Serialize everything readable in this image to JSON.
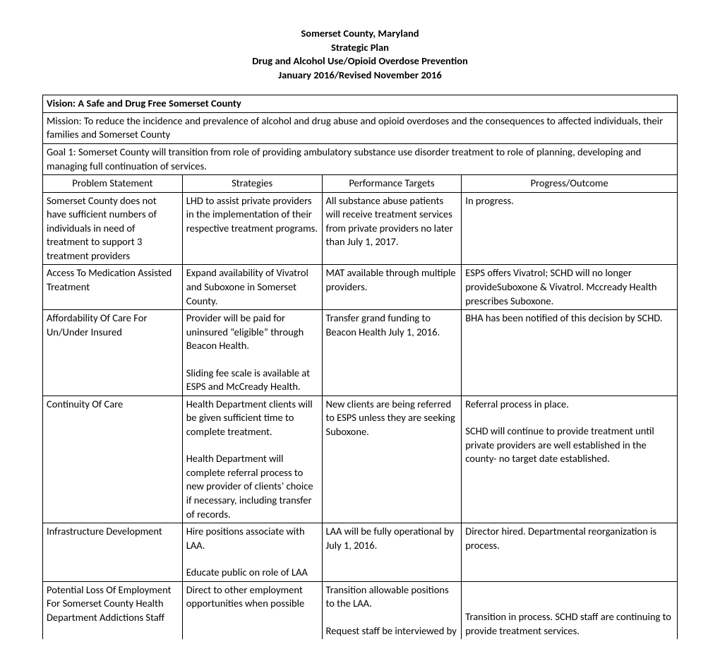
{
  "header": {
    "line1": "Somerset County, Maryland",
    "line2": "Strategic Plan",
    "line3": "Drug and Alcohol Use/Opioid Overdose Prevention",
    "line4": "January 2016/Revised November 2016"
  },
  "vision": "Vision: A Safe and Drug Free Somerset County",
  "mission": "Mission: To reduce the incidence and prevalence of alcohol and drug abuse and opioid overdoses and the consequences to affected individuals, their families and Somerset County",
  "goal": "Goal 1: Somerset County will transition from role of providing ambulatory substance use disorder treatment to role of planning, developing and managing full continuation of services.",
  "columns": {
    "c1": "Problem Statement",
    "c2": "Strategies",
    "c3": "Performance Targets",
    "c4": "Progress/Outcome"
  },
  "rows": [
    {
      "problem": "Somerset County does not have sufficient numbers of individuals in need of treatment to support 3 treatment providers",
      "strategies_a": "LHD to assist  private providers in the implementation of their respective treatment programs.",
      "strategies_b": "",
      "targets_a": "All substance abuse patients will receive treatment services from private providers no later than July 1, 2017.",
      "targets_b": "",
      "progress_a": "In progress.",
      "progress_b": ""
    },
    {
      "problem": "Access To Medication Assisted Treatment",
      "strategies_a": "Expand availability of Vivatrol and Suboxone in Somerset County.",
      "strategies_b": "",
      "targets_a": "MAT available through multiple providers.",
      "targets_b": "",
      "progress_a": "ESPS offers Vivatrol; SCHD will no longer provideSuboxone & Vivatrol.  Mccready Health prescribes Suboxone.",
      "progress_b": ""
    },
    {
      "problem": "Affordability Of Care For Un/Under Insured",
      "strategies_a": "Provider will be paid for uninsured “eligible” through Beacon Health.",
      "strategies_b": "Sliding fee scale is available at ESPS and McCready Health.",
      "targets_a": "Transfer grand funding to Beacon Health July 1, 2016.",
      "targets_b": "",
      "progress_a": "BHA has been notified of this decision by SCHD.",
      "progress_b": ""
    },
    {
      "problem": "Continuity Of Care",
      "strategies_a": "Health Department clients will be given sufficient time to complete treatment.",
      "strategies_b": "Health Department will complete referral process to new provider of clients’ choice if necessary, including transfer of records.",
      "targets_a": "New clients are being referred to ESPS unless they are seeking Suboxone.",
      "targets_b": "",
      "progress_a": "Referral process in place.",
      "progress_b": "SCHD will continue to provide treatment until private providers are well established in the county- no target date established."
    },
    {
      "problem": "Infrastructure Development",
      "strategies_a": "Hire positions associate with LAA.",
      "strategies_b": "Educate public on role of LAA",
      "targets_a": "LAA will be fully operational by July 1, 2016.",
      "targets_b": "",
      "progress_a": "Director hired. Departmental reorganization is process.",
      "progress_b": ""
    },
    {
      "problem": "Potential Loss Of Employment For Somerset County Health Department Addictions Staff",
      "strategies_a": "Direct to other employment opportunities when possible",
      "strategies_b": "",
      "targets_a": "Transition allowable positions to the LAA.",
      "targets_b": "Request staff be interviewed by",
      "progress_a": "",
      "progress_b": "Transition in process. SCHD staff are continuing to provide treatment services."
    }
  ]
}
